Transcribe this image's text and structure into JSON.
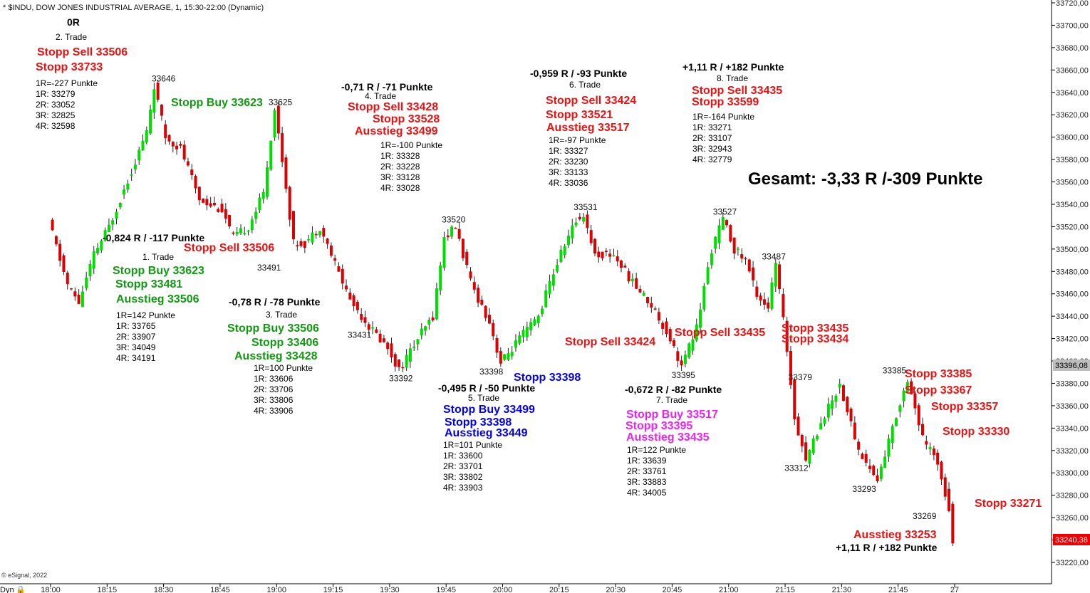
{
  "header": {
    "title": "* $INDU, DOW JONES INDUSTRIAL AVERAGE, 1, 15:30-22:00 (Dynamic)"
  },
  "footer": {
    "copyright": "© eSignal, 2022",
    "dyn_label": "Dyn"
  },
  "summary": {
    "total": "Gesamt: -3,33 R /-309 Punkte"
  },
  "colors": {
    "up": "#00dd00",
    "down": "#dd0000",
    "red": "#ee1111",
    "green": "#119911",
    "blue": "#0000ee",
    "magenta": "#ee22ee",
    "black": "#000000",
    "last_price_bg": "#ee0000",
    "crosshair_bg": "#bbbbbb"
  },
  "chart_data": {
    "type": "candlestick",
    "xlabel": "",
    "ylabel": "",
    "ylim": [
      33210,
      33725
    ],
    "y_ticks": [
      "33720,00",
      "33700,00",
      "33680,00",
      "33660,00",
      "33640,00",
      "33620,00",
      "33600,00",
      "33580,00",
      "33560,00",
      "33540,00",
      "33520,00",
      "33500,00",
      "33480,00",
      "33460,00",
      "33440,00",
      "33420,00",
      "33400,00",
      "33380,00",
      "33360,00",
      "33340,00",
      "33320,00",
      "33300,00",
      "33280,00",
      "33260,00",
      "33240,00",
      "33220,00"
    ],
    "x_ticks": [
      "18:00",
      "18:15",
      "18:30",
      "18:45",
      "19:00",
      "19:15",
      "19:30",
      "19:45",
      "20:00",
      "20:15",
      "20:30",
      "20:45",
      "21:00",
      "21:15",
      "21:30",
      "21:45",
      "27"
    ],
    "last_price": "33240,38",
    "crosshair_price": "33396,08",
    "price_path": [
      [
        "18:00",
        33525
      ],
      [
        "18:05",
        33468
      ],
      [
        "18:08",
        33452
      ],
      [
        "18:12",
        33495
      ],
      [
        "18:16",
        33520
      ],
      [
        "18:22",
        33570
      ],
      [
        "18:26",
        33605
      ],
      [
        "18:28",
        33646
      ],
      [
        "18:31",
        33600
      ],
      [
        "18:35",
        33590
      ],
      [
        "18:40",
        33545
      ],
      [
        "18:46",
        33535
      ],
      [
        "18:49",
        33510
      ],
      [
        "18:53",
        33520
      ],
      [
        "18:57",
        33550
      ],
      [
        "19:00",
        33625
      ],
      [
        "19:02",
        33580
      ],
      [
        "19:05",
        33505
      ],
      [
        "19:08",
        33505
      ],
      [
        "19:12",
        33520
      ],
      [
        "19:15",
        33495
      ],
      [
        "19:20",
        33455
      ],
      [
        "19:25",
        33431
      ],
      [
        "19:30",
        33412
      ],
      [
        "19:33",
        33392
      ],
      [
        "19:38",
        33420
      ],
      [
        "19:42",
        33440
      ],
      [
        "19:45",
        33510
      ],
      [
        "19:48",
        33520
      ],
      [
        "19:52",
        33470
      ],
      [
        "19:57",
        33435
      ],
      [
        "20:00",
        33398
      ],
      [
        "20:05",
        33420
      ],
      [
        "20:10",
        33440
      ],
      [
        "20:13",
        33470
      ],
      [
        "20:17",
        33505
      ],
      [
        "20:20",
        33525
      ],
      [
        "20:22",
        33531
      ],
      [
        "20:25",
        33495
      ],
      [
        "20:30",
        33495
      ],
      [
        "20:35",
        33470
      ],
      [
        "20:40",
        33450
      ],
      [
        "20:45",
        33420
      ],
      [
        "20:48",
        33395
      ],
      [
        "20:52",
        33430
      ],
      [
        "20:56",
        33500
      ],
      [
        "20:59",
        33527
      ],
      [
        "21:02",
        33500
      ],
      [
        "21:05",
        33490
      ],
      [
        "21:08",
        33460
      ],
      [
        "21:11",
        33448
      ],
      [
        "21:13",
        33487
      ],
      [
        "21:16",
        33410
      ],
      [
        "21:18",
        33350
      ],
      [
        "21:21",
        33312
      ],
      [
        "21:25",
        33345
      ],
      [
        "21:30",
        33379
      ],
      [
        "21:35",
        33320
      ],
      [
        "21:40",
        33293
      ],
      [
        "21:44",
        33340
      ],
      [
        "21:48",
        33385
      ],
      [
        "21:52",
        33330
      ],
      [
        "21:56",
        33310
      ],
      [
        "21:59",
        33269
      ],
      [
        "22:00",
        33240
      ]
    ],
    "price_labels": [
      {
        "t": "18:30",
        "v": 33646,
        "text": "33646"
      },
      {
        "t": "19:01",
        "v": 33625,
        "text": "33625"
      },
      {
        "t": "18:58",
        "v": 33491,
        "text": "33491"
      },
      {
        "t": "19:22",
        "v": 33431,
        "text": "33431"
      },
      {
        "t": "19:33",
        "v": 33392,
        "text": "33392"
      },
      {
        "t": "19:47",
        "v": 33520,
        "text": "33520"
      },
      {
        "t": "19:57",
        "v": 33398,
        "text": "33398"
      },
      {
        "t": "20:22",
        "v": 33531,
        "text": "33531"
      },
      {
        "t": "20:48",
        "v": 33395,
        "text": "33395"
      },
      {
        "t": "20:59",
        "v": 33527,
        "text": "33527"
      },
      {
        "t": "21:12",
        "v": 33487,
        "text": "33487"
      },
      {
        "t": "21:19",
        "v": 33379,
        "text": "33379"
      },
      {
        "t": "21:18",
        "v": 33312,
        "text": "33312"
      },
      {
        "t": "21:36",
        "v": 33293,
        "text": "33293"
      },
      {
        "t": "21:44",
        "v": 33385,
        "text": "33385"
      },
      {
        "t": "21:52",
        "v": 33269,
        "text": "33269"
      }
    ]
  },
  "annotations": [
    {
      "text": "0R",
      "color": "black",
      "size": 14
    },
    {
      "text": "2. Trade",
      "color": "black",
      "size": 12
    },
    {
      "text": "Stopp Sell 33506",
      "color": "red",
      "size": 16
    },
    {
      "text": "Stopp 33733",
      "color": "red",
      "size": 16
    },
    {
      "text": "1R=-227 Punkte",
      "color": "black",
      "size": 12
    },
    {
      "text": "1R: 33279",
      "color": "black",
      "size": 12
    },
    {
      "text": "2R: 33052",
      "color": "black",
      "size": 12
    },
    {
      "text": "3R: 32825",
      "color": "black",
      "size": 12
    },
    {
      "text": "4R: 32598",
      "color": "black",
      "size": 12
    },
    {
      "text": "Stopp Buy 33623",
      "color": "green",
      "size": 16
    },
    {
      "text": "-0,824 R / -117 Punkte",
      "color": "black",
      "size": 14
    },
    {
      "text": "1. Trade",
      "color": "black",
      "size": 12
    },
    {
      "text": "Stopp Sell 33506",
      "color": "red",
      "size": 16
    },
    {
      "text": "Stopp Buy 33623",
      "color": "green",
      "size": 16
    },
    {
      "text": "Stopp 33481",
      "color": "green",
      "size": 16
    },
    {
      "text": "Ausstieg 33506",
      "color": "green",
      "size": 16
    },
    {
      "text": "1R=142 Punkte",
      "color": "black",
      "size": 12
    },
    {
      "text": "1R: 33765",
      "color": "black",
      "size": 12
    },
    {
      "text": "2R: 33907",
      "color": "black",
      "size": 12
    },
    {
      "text": "3R: 34049",
      "color": "black",
      "size": 12
    },
    {
      "text": "4R: 34191",
      "color": "black",
      "size": 12
    },
    {
      "text": "-0,78 R / -78 Punkte",
      "color": "black",
      "size": 14
    },
    {
      "text": "3. Trade",
      "color": "black",
      "size": 12
    },
    {
      "text": "Stopp Buy 33506",
      "color": "green",
      "size": 16
    },
    {
      "text": "Stopp 33406",
      "color": "green",
      "size": 16
    },
    {
      "text": "Ausstieg 33428",
      "color": "green",
      "size": 16
    },
    {
      "text": "1R=100 Punkte",
      "color": "black",
      "size": 12
    },
    {
      "text": "1R: 33606",
      "color": "black",
      "size": 12
    },
    {
      "text": "2R: 33706",
      "color": "black",
      "size": 12
    },
    {
      "text": "3R: 33806",
      "color": "black",
      "size": 12
    },
    {
      "text": "4R: 33906",
      "color": "black",
      "size": 12
    },
    {
      "text": "-0,71 R / -71 Punkte",
      "color": "black",
      "size": 14
    },
    {
      "text": "4. Trade",
      "color": "black",
      "size": 12
    },
    {
      "text": "Stopp Sell 33428",
      "color": "red",
      "size": 16
    },
    {
      "text": "Stopp 33528",
      "color": "red",
      "size": 16
    },
    {
      "text": "Ausstieg 33499",
      "color": "red",
      "size": 16
    },
    {
      "text": "1R=-100 Punkte",
      "color": "black",
      "size": 12
    },
    {
      "text": "1R: 33328",
      "color": "black",
      "size": 12
    },
    {
      "text": "2R: 33228",
      "color": "black",
      "size": 12
    },
    {
      "text": "3R: 33128",
      "color": "black",
      "size": 12
    },
    {
      "text": "4R: 33028",
      "color": "black",
      "size": 12
    },
    {
      "text": "Stopp 33398",
      "color": "blue",
      "size": 16
    },
    {
      "text": "-0,495 R / -50 Punkte",
      "color": "black",
      "size": 14
    },
    {
      "text": "5. Trade",
      "color": "black",
      "size": 12
    },
    {
      "text": "Stopp Buy 33499",
      "color": "blue",
      "size": 16
    },
    {
      "text": "Stopp 33398",
      "color": "blue",
      "size": 16
    },
    {
      "text": "Ausstieg 33449",
      "color": "blue",
      "size": 16
    },
    {
      "text": "1R=101 Punkte",
      "color": "black",
      "size": 12
    },
    {
      "text": "1R: 33600",
      "color": "black",
      "size": 12
    },
    {
      "text": "2R: 33701",
      "color": "black",
      "size": 12
    },
    {
      "text": "3R: 33802",
      "color": "black",
      "size": 12
    },
    {
      "text": "4R: 33903",
      "color": "black",
      "size": 12
    },
    {
      "text": "-0,959 R / -93 Punkte",
      "color": "black",
      "size": 14
    },
    {
      "text": "6. Trade",
      "color": "black",
      "size": 12
    },
    {
      "text": "Stopp Sell 33424",
      "color": "red",
      "size": 16
    },
    {
      "text": "Stopp 33521",
      "color": "red",
      "size": 16
    },
    {
      "text": "Ausstieg 33517",
      "color": "red",
      "size": 16
    },
    {
      "text": "1R=-97 Punkte",
      "color": "black",
      "size": 12
    },
    {
      "text": "1R: 33327",
      "color": "black",
      "size": 12
    },
    {
      "text": "2R: 33230",
      "color": "black",
      "size": 12
    },
    {
      "text": "3R: 33133",
      "color": "black",
      "size": 12
    },
    {
      "text": "4R: 33036",
      "color": "black",
      "size": 12
    },
    {
      "text": "Stopp Sell 33424",
      "color": "red",
      "size": 16
    },
    {
      "text": "Stopp Sell 33435",
      "color": "red",
      "size": 16
    },
    {
      "text": "-0,672 R / -82 Punkte",
      "color": "black",
      "size": 14
    },
    {
      "text": "7. Trade",
      "color": "black",
      "size": 12
    },
    {
      "text": "Stopp Buy 33517",
      "color": "magenta",
      "size": 16
    },
    {
      "text": "Stopp 33395",
      "color": "magenta",
      "size": 16
    },
    {
      "text": "Ausstieg 33435",
      "color": "magenta",
      "size": 16
    },
    {
      "text": "1R=122 Punkte",
      "color": "black",
      "size": 12
    },
    {
      "text": "1R: 33639",
      "color": "black",
      "size": 12
    },
    {
      "text": "2R: 33761",
      "color": "black",
      "size": 12
    },
    {
      "text": "3R: 33883",
      "color": "black",
      "size": 12
    },
    {
      "text": "4R: 34005",
      "color": "black",
      "size": 12
    },
    {
      "text": "+1,11 R / +182 Punkte",
      "color": "black",
      "size": 14
    },
    {
      "text": "8. Trade",
      "color": "black",
      "size": 12
    },
    {
      "text": "Stopp Sell 33435",
      "color": "red",
      "size": 16
    },
    {
      "text": "Stopp 33599",
      "color": "red",
      "size": 16
    },
    {
      "text": "1R=-164 Punkte",
      "color": "black",
      "size": 12
    },
    {
      "text": "1R: 33271",
      "color": "black",
      "size": 12
    },
    {
      "text": "2R: 33107",
      "color": "black",
      "size": 12
    },
    {
      "text": "3R: 32943",
      "color": "black",
      "size": 12
    },
    {
      "text": "4R: 32779",
      "color": "black",
      "size": 12
    },
    {
      "text": "Stopp 33435",
      "color": "red",
      "size": 16
    },
    {
      "text": "Stopp 33434",
      "color": "red",
      "size": 16
    },
    {
      "text": "Stopp 33385",
      "color": "red",
      "size": 16
    },
    {
      "text": "Stopp 33367",
      "color": "red",
      "size": 16
    },
    {
      "text": "Stopp 33357",
      "color": "red",
      "size": 16
    },
    {
      "text": "Stopp 33330",
      "color": "red",
      "size": 16
    },
    {
      "text": "Stopp 33271",
      "color": "red",
      "size": 16
    },
    {
      "text": "Ausstieg 33253",
      "color": "red",
      "size": 16
    },
    {
      "text": "+1,11 R / +182 Punkte",
      "color": "black",
      "size": 14
    }
  ]
}
